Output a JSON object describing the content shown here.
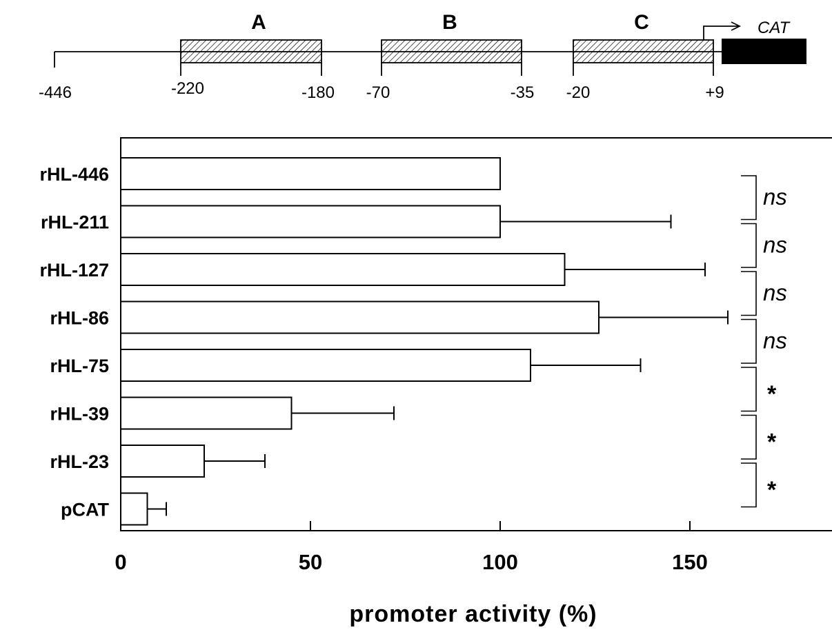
{
  "promoter_map": {
    "regions": [
      {
        "name": "A",
        "start": -220,
        "end": -180
      },
      {
        "name": "B",
        "start": -70,
        "end": -35
      },
      {
        "name": "C",
        "start": -20,
        "end": 9
      }
    ],
    "position_labels": [
      "-446",
      "-220",
      "-180",
      "-70",
      "-35",
      "-20",
      "+9"
    ],
    "reporter_label": "CAT"
  },
  "chart_data": {
    "type": "bar",
    "orientation": "horizontal",
    "categories": [
      "rHL-446",
      "rHL-211",
      "rHL-127",
      "rHL-86",
      "rHL-75",
      "rHL-39",
      "rHL-23",
      "pCAT"
    ],
    "values": [
      100,
      100,
      117,
      126,
      108,
      45,
      22,
      7
    ],
    "errors": [
      0,
      45,
      37,
      34,
      29,
      27,
      16,
      5
    ],
    "xlabel": "promoter activity (%)",
    "xlim": [
      0,
      187
    ],
    "xticks": [
      0,
      50,
      100,
      150
    ],
    "bar_fill": "#ffffff",
    "bar_stroke": "#000000",
    "significance": [
      {
        "between": [
          "rHL-446",
          "rHL-211"
        ],
        "label": "ns"
      },
      {
        "between": [
          "rHL-211",
          "rHL-127"
        ],
        "label": "ns"
      },
      {
        "between": [
          "rHL-127",
          "rHL-86"
        ],
        "label": "ns"
      },
      {
        "between": [
          "rHL-86",
          "rHL-75"
        ],
        "label": "ns"
      },
      {
        "between": [
          "rHL-75",
          "rHL-39"
        ],
        "label": "*"
      },
      {
        "between": [
          "rHL-39",
          "rHL-23"
        ],
        "label": "*"
      },
      {
        "between": [
          "rHL-23",
          "pCAT"
        ],
        "label": "*"
      }
    ]
  }
}
